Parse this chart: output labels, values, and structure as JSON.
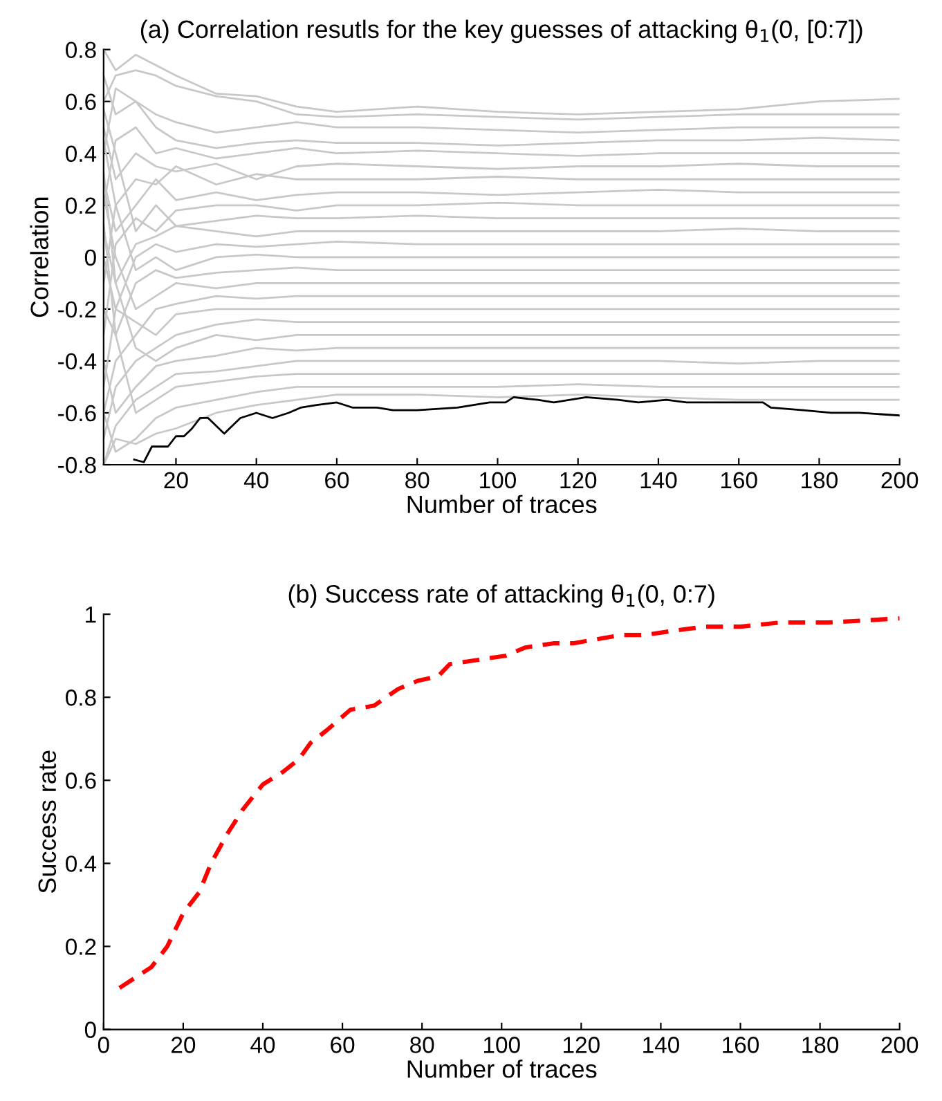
{
  "chart_data": [
    {
      "type": "line",
      "title": "(a) Correlation resutls for the key guesses of attacking θ$_{1}$(0, [0:7])",
      "xlabel": "Number of traces",
      "ylabel": "Correlation",
      "xlim": [
        2,
        200
      ],
      "ylim": [
        -0.8,
        0.8
      ],
      "xticks": [
        20,
        40,
        60,
        80,
        100,
        120,
        140,
        160,
        180,
        200
      ],
      "yticks": [
        -0.8,
        -0.6,
        -0.4,
        -0.2,
        0,
        0.2,
        0.4,
        0.6,
        0.8
      ],
      "grid": false,
      "legend": false,
      "line_style": "solid",
      "marker": "none",
      "x": [
        2,
        5,
        10,
        15,
        20,
        30,
        40,
        50,
        60,
        80,
        100,
        120,
        140,
        160,
        180,
        200
      ],
      "series": [
        {
          "color": "#c8c8c8",
          "values": [
            0.8,
            0.72,
            0.78,
            0.74,
            0.7,
            0.63,
            0.62,
            0.58,
            0.56,
            0.58,
            0.56,
            0.55,
            0.56,
            0.57,
            0.6,
            0.61
          ]
        },
        {
          "color": "#c8c8c8",
          "values": [
            0.6,
            0.7,
            0.72,
            0.7,
            0.66,
            0.62,
            0.6,
            0.55,
            0.54,
            0.55,
            0.54,
            0.53,
            0.54,
            0.55,
            0.55,
            0.55
          ]
        },
        {
          "color": "#c8c8c8",
          "values": [
            0.4,
            0.65,
            0.6,
            0.55,
            0.52,
            0.48,
            0.5,
            0.52,
            0.5,
            0.5,
            0.49,
            0.48,
            0.49,
            0.5,
            0.5,
            0.5
          ]
        },
        {
          "color": "#c8c8c8",
          "values": [
            0.7,
            0.55,
            0.6,
            0.5,
            0.45,
            0.42,
            0.44,
            0.45,
            0.44,
            0.44,
            0.43,
            0.44,
            0.45,
            0.45,
            0.46,
            0.45
          ]
        },
        {
          "color": "#c8c8c8",
          "values": [
            0.2,
            0.45,
            0.5,
            0.4,
            0.42,
            0.38,
            0.4,
            0.42,
            0.4,
            0.41,
            0.4,
            0.39,
            0.4,
            0.4,
            0.4,
            0.4
          ]
        },
        {
          "color": "#c8c8c8",
          "values": [
            0.5,
            0.3,
            0.4,
            0.35,
            0.33,
            0.36,
            0.3,
            0.35,
            0.36,
            0.35,
            0.34,
            0.35,
            0.35,
            0.36,
            0.35,
            0.35
          ]
        },
        {
          "color": "#c8c8c8",
          "values": [
            -0.1,
            0.2,
            0.3,
            0.28,
            0.35,
            0.28,
            0.32,
            0.3,
            0.3,
            0.3,
            0.31,
            0.3,
            0.3,
            0.3,
            0.3,
            0.3
          ]
        },
        {
          "color": "#c8c8c8",
          "values": [
            0.3,
            0.1,
            0.2,
            0.3,
            0.22,
            0.25,
            0.22,
            0.24,
            0.25,
            0.25,
            0.24,
            0.25,
            0.26,
            0.25,
            0.25,
            0.25
          ]
        },
        {
          "color": "#c8c8c8",
          "values": [
            -0.3,
            0.05,
            0.15,
            0.1,
            0.18,
            0.2,
            0.2,
            0.18,
            0.2,
            0.2,
            0.21,
            0.2,
            0.2,
            0.2,
            0.2,
            0.2
          ]
        },
        {
          "color": "#c8c8c8",
          "values": [
            0.57,
            0.4,
            0.1,
            0.2,
            0.12,
            0.14,
            0.16,
            0.15,
            0.15,
            0.16,
            0.15,
            0.15,
            0.15,
            0.15,
            0.15,
            0.15
          ]
        },
        {
          "color": "#c8c8c8",
          "values": [
            0.1,
            -0.1,
            0.05,
            0.08,
            0.12,
            0.1,
            0.08,
            0.1,
            0.1,
            0.1,
            0.1,
            0.1,
            0.1,
            0.11,
            0.1,
            0.1
          ]
        },
        {
          "color": "#c8c8c8",
          "values": [
            -0.5,
            -0.2,
            0,
            0.05,
            0.02,
            0.05,
            0.04,
            0.05,
            0.06,
            0.05,
            0.05,
            0.05,
            0.05,
            0.05,
            0.05,
            0.05
          ]
        },
        {
          "color": "#c8c8c8",
          "values": [
            0.45,
            0.2,
            -0.05,
            0,
            -0.05,
            0,
            0.01,
            0,
            0,
            0,
            0,
            0,
            0,
            0,
            0,
            0
          ]
        },
        {
          "color": "#c8c8c8",
          "values": [
            -0.2,
            -0.3,
            -0.1,
            -0.05,
            -0.08,
            -0.06,
            -0.05,
            -0.04,
            -0.05,
            -0.05,
            -0.05,
            -0.05,
            -0.05,
            -0.05,
            -0.05,
            -0.05
          ]
        },
        {
          "color": "#c8c8c8",
          "values": [
            0.24,
            0,
            -0.2,
            -0.15,
            -0.1,
            -0.12,
            -0.1,
            -0.1,
            -0.1,
            -0.1,
            -0.1,
            -0.1,
            -0.1,
            -0.1,
            -0.1,
            -0.1
          ]
        },
        {
          "color": "#c8c8c8",
          "values": [
            -0.6,
            -0.4,
            -0.3,
            -0.2,
            -0.18,
            -0.15,
            -0.16,
            -0.15,
            -0.15,
            -0.15,
            -0.15,
            -0.15,
            -0.15,
            -0.15,
            -0.15,
            -0.15
          ]
        },
        {
          "color": "#c8c8c8",
          "values": [
            0,
            -0.2,
            -0.25,
            -0.3,
            -0.22,
            -0.2,
            -0.2,
            -0.2,
            -0.2,
            -0.2,
            -0.2,
            -0.2,
            -0.2,
            -0.2,
            -0.2,
            -0.2
          ]
        },
        {
          "color": "#c8c8c8",
          "values": [
            -0.7,
            -0.5,
            -0.4,
            -0.35,
            -0.3,
            -0.26,
            -0.24,
            -0.25,
            -0.25,
            -0.25,
            -0.25,
            -0.25,
            -0.25,
            -0.25,
            -0.25,
            -0.25
          ]
        },
        {
          "color": "#c8c8c8",
          "values": [
            0.33,
            -0.1,
            -0.35,
            -0.4,
            -0.35,
            -0.3,
            -0.32,
            -0.3,
            -0.3,
            -0.3,
            -0.3,
            -0.3,
            -0.3,
            -0.3,
            -0.3,
            -0.3
          ]
        },
        {
          "color": "#c8c8c8",
          "values": [
            -0.4,
            -0.6,
            -0.5,
            -0.42,
            -0.4,
            -0.38,
            -0.35,
            -0.36,
            -0.35,
            -0.35,
            -0.35,
            -0.35,
            -0.35,
            -0.35,
            -0.35,
            -0.35
          ]
        },
        {
          "color": "#c8c8c8",
          "values": [
            -0.8,
            -0.65,
            -0.55,
            -0.5,
            -0.45,
            -0.44,
            -0.42,
            -0.4,
            -0.4,
            -0.4,
            -0.4,
            -0.4,
            -0.4,
            -0.41,
            -0.4,
            -0.4
          ]
        },
        {
          "color": "#c8c8c8",
          "values": [
            0.13,
            -0.3,
            -0.6,
            -0.55,
            -0.5,
            -0.48,
            -0.46,
            -0.45,
            -0.45,
            -0.45,
            -0.45,
            -0.45,
            -0.45,
            -0.45,
            -0.45,
            -0.45
          ]
        },
        {
          "color": "#c8c8c8",
          "values": [
            -0.6,
            -0.75,
            -0.7,
            -0.62,
            -0.58,
            -0.55,
            -0.52,
            -0.5,
            -0.5,
            -0.5,
            -0.5,
            -0.49,
            -0.5,
            -0.5,
            -0.5,
            -0.5
          ]
        },
        {
          "color": "#c8c8c8",
          "values": [
            -0.8,
            -0.7,
            -0.72,
            -0.68,
            -0.66,
            -0.6,
            -0.57,
            -0.55,
            -0.53,
            -0.53,
            -0.54,
            -0.53,
            -0.54,
            -0.55,
            -0.55,
            -0.55
          ]
        },
        {
          "color": "#000000",
          "x": [
            9.6,
            12,
            14,
            18,
            20,
            22,
            24,
            26,
            28,
            32,
            36,
            40,
            44,
            48,
            51,
            55,
            60,
            64,
            70,
            74,
            80,
            90,
            98,
            102,
            104,
            110,
            114,
            122,
            130,
            135,
            142,
            147,
            156,
            166,
            168,
            176,
            183,
            190,
            200
          ],
          "values": [
            -0.78,
            -0.79,
            -0.73,
            -0.73,
            -0.69,
            -0.69,
            -0.66,
            -0.62,
            -0.62,
            -0.68,
            -0.62,
            -0.6,
            -0.62,
            -0.6,
            -0.58,
            -0.57,
            -0.56,
            -0.58,
            -0.58,
            -0.59,
            -0.59,
            -0.58,
            -0.56,
            -0.56,
            -0.54,
            -0.55,
            -0.56,
            -0.54,
            -0.55,
            -0.56,
            -0.55,
            -0.56,
            -0.56,
            -0.56,
            -0.58,
            -0.59,
            -0.6,
            -0.6,
            -0.61
          ]
        }
      ]
    },
    {
      "type": "line",
      "title": "(b) Success rate of attacking θ$_{1}$(0, 0:7)",
      "xlabel": "Number of traces",
      "ylabel": "Success rate",
      "xlim": [
        0,
        200
      ],
      "ylim": [
        0,
        1
      ],
      "xticks": [
        0,
        20,
        40,
        60,
        80,
        100,
        120,
        140,
        160,
        180,
        200
      ],
      "yticks": [
        0,
        0.2,
        0.4,
        0.6,
        0.8,
        1
      ],
      "grid": false,
      "legend": false,
      "line_style": "dashed",
      "marker": "none",
      "x": [
        4,
        12,
        16,
        20,
        24,
        27,
        31,
        35,
        40,
        45,
        49,
        52,
        56,
        62,
        68,
        74,
        79,
        84,
        87,
        94,
        101,
        106,
        113,
        118,
        124,
        130,
        136,
        143,
        151,
        160,
        170,
        182,
        200
      ],
      "series": [
        {
          "color": "#ff0000",
          "values": [
            0.1,
            0.15,
            0.2,
            0.28,
            0.33,
            0.4,
            0.47,
            0.53,
            0.59,
            0.62,
            0.65,
            0.69,
            0.72,
            0.77,
            0.78,
            0.82,
            0.84,
            0.85,
            0.88,
            0.89,
            0.9,
            0.92,
            0.93,
            0.93,
            0.94,
            0.95,
            0.95,
            0.96,
            0.97,
            0.97,
            0.98,
            0.98,
            0.99
          ]
        }
      ]
    }
  ]
}
